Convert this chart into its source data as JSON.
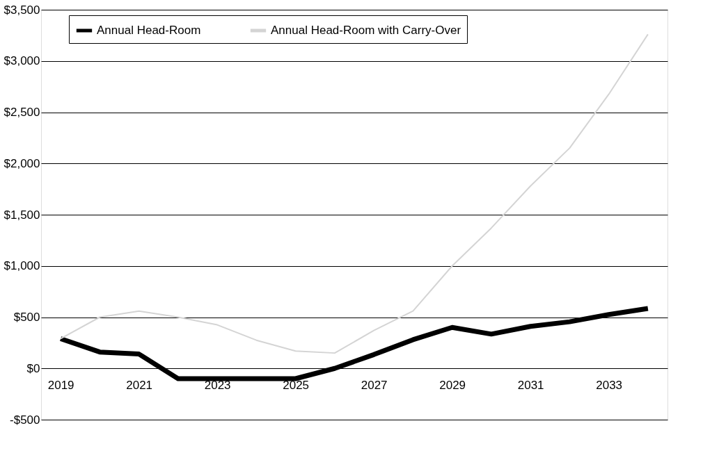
{
  "chart_data": {
    "type": "line",
    "categories": [
      "2019",
      null,
      "2021",
      null,
      "2023",
      null,
      "2025",
      null,
      "2027",
      null,
      "2029",
      null,
      "2031",
      null,
      "2033",
      null
    ],
    "series": [
      {
        "name": "Annual Head-Room",
        "color": "#000000",
        "values": [
          290,
          160,
          140,
          -100,
          -100,
          -100,
          -100,
          0,
          135,
          280,
          400,
          335,
          410,
          455,
          525,
          585
        ]
      },
      {
        "name": "Annual Head-Room with Carry-Over",
        "color": "#d4d4d4",
        "values": [
          290,
          500,
          560,
          500,
          425,
          275,
          170,
          150,
          370,
          560,
          1000,
          1370,
          1780,
          2150,
          2675,
          3260
        ]
      }
    ],
    "ylim": [
      -500,
      3500
    ],
    "yticks": [
      {
        "value": -500,
        "label": "-$500"
      },
      {
        "value": 0,
        "label": "$0"
      },
      {
        "value": 500,
        "label": "$500"
      },
      {
        "value": 1000,
        "label": "$1,000"
      },
      {
        "value": 1500,
        "label": "$1,500"
      },
      {
        "value": 2000,
        "label": "$2,000"
      },
      {
        "value": 2500,
        "label": "$2,500"
      },
      {
        "value": 3000,
        "label": "$3,000"
      },
      {
        "value": 3500,
        "label": "$3,500"
      }
    ],
    "grid": "y",
    "legend": "top",
    "marker": "none",
    "line_style": "solid"
  }
}
